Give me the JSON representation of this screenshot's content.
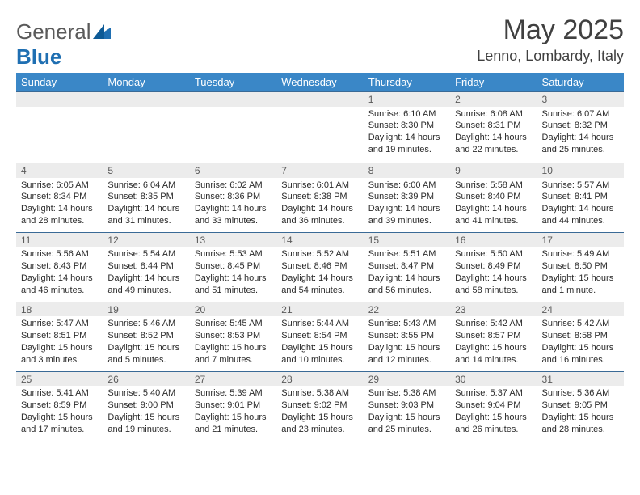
{
  "brand": {
    "part1": "General",
    "part2": "Blue"
  },
  "title": "May 2025",
  "location": "Lenno, Lombardy, Italy",
  "colors": {
    "header_bg": "#3a87c7",
    "header_text": "#ffffff",
    "daynum_bg": "#ececec",
    "row_border": "#3a6a96",
    "page_bg": "#ffffff",
    "text": "#2a2a2a",
    "title_color": "#404040"
  },
  "typography": {
    "title_fontsize": 34,
    "location_fontsize": 18,
    "header_fontsize": 13,
    "daynum_fontsize": 12,
    "body_fontsize": 11
  },
  "weekdays": [
    "Sunday",
    "Monday",
    "Tuesday",
    "Wednesday",
    "Thursday",
    "Friday",
    "Saturday"
  ],
  "weeks": [
    [
      null,
      null,
      null,
      null,
      {
        "n": "1",
        "sr": "Sunrise: 6:10 AM",
        "ss": "Sunset: 8:30 PM",
        "d1": "Daylight: 14 hours",
        "d2": "and 19 minutes."
      },
      {
        "n": "2",
        "sr": "Sunrise: 6:08 AM",
        "ss": "Sunset: 8:31 PM",
        "d1": "Daylight: 14 hours",
        "d2": "and 22 minutes."
      },
      {
        "n": "3",
        "sr": "Sunrise: 6:07 AM",
        "ss": "Sunset: 8:32 PM",
        "d1": "Daylight: 14 hours",
        "d2": "and 25 minutes."
      }
    ],
    [
      {
        "n": "4",
        "sr": "Sunrise: 6:05 AM",
        "ss": "Sunset: 8:34 PM",
        "d1": "Daylight: 14 hours",
        "d2": "and 28 minutes."
      },
      {
        "n": "5",
        "sr": "Sunrise: 6:04 AM",
        "ss": "Sunset: 8:35 PM",
        "d1": "Daylight: 14 hours",
        "d2": "and 31 minutes."
      },
      {
        "n": "6",
        "sr": "Sunrise: 6:02 AM",
        "ss": "Sunset: 8:36 PM",
        "d1": "Daylight: 14 hours",
        "d2": "and 33 minutes."
      },
      {
        "n": "7",
        "sr": "Sunrise: 6:01 AM",
        "ss": "Sunset: 8:38 PM",
        "d1": "Daylight: 14 hours",
        "d2": "and 36 minutes."
      },
      {
        "n": "8",
        "sr": "Sunrise: 6:00 AM",
        "ss": "Sunset: 8:39 PM",
        "d1": "Daylight: 14 hours",
        "d2": "and 39 minutes."
      },
      {
        "n": "9",
        "sr": "Sunrise: 5:58 AM",
        "ss": "Sunset: 8:40 PM",
        "d1": "Daylight: 14 hours",
        "d2": "and 41 minutes."
      },
      {
        "n": "10",
        "sr": "Sunrise: 5:57 AM",
        "ss": "Sunset: 8:41 PM",
        "d1": "Daylight: 14 hours",
        "d2": "and 44 minutes."
      }
    ],
    [
      {
        "n": "11",
        "sr": "Sunrise: 5:56 AM",
        "ss": "Sunset: 8:43 PM",
        "d1": "Daylight: 14 hours",
        "d2": "and 46 minutes."
      },
      {
        "n": "12",
        "sr": "Sunrise: 5:54 AM",
        "ss": "Sunset: 8:44 PM",
        "d1": "Daylight: 14 hours",
        "d2": "and 49 minutes."
      },
      {
        "n": "13",
        "sr": "Sunrise: 5:53 AM",
        "ss": "Sunset: 8:45 PM",
        "d1": "Daylight: 14 hours",
        "d2": "and 51 minutes."
      },
      {
        "n": "14",
        "sr": "Sunrise: 5:52 AM",
        "ss": "Sunset: 8:46 PM",
        "d1": "Daylight: 14 hours",
        "d2": "and 54 minutes."
      },
      {
        "n": "15",
        "sr": "Sunrise: 5:51 AM",
        "ss": "Sunset: 8:47 PM",
        "d1": "Daylight: 14 hours",
        "d2": "and 56 minutes."
      },
      {
        "n": "16",
        "sr": "Sunrise: 5:50 AM",
        "ss": "Sunset: 8:49 PM",
        "d1": "Daylight: 14 hours",
        "d2": "and 58 minutes."
      },
      {
        "n": "17",
        "sr": "Sunrise: 5:49 AM",
        "ss": "Sunset: 8:50 PM",
        "d1": "Daylight: 15 hours",
        "d2": "and 1 minute."
      }
    ],
    [
      {
        "n": "18",
        "sr": "Sunrise: 5:47 AM",
        "ss": "Sunset: 8:51 PM",
        "d1": "Daylight: 15 hours",
        "d2": "and 3 minutes."
      },
      {
        "n": "19",
        "sr": "Sunrise: 5:46 AM",
        "ss": "Sunset: 8:52 PM",
        "d1": "Daylight: 15 hours",
        "d2": "and 5 minutes."
      },
      {
        "n": "20",
        "sr": "Sunrise: 5:45 AM",
        "ss": "Sunset: 8:53 PM",
        "d1": "Daylight: 15 hours",
        "d2": "and 7 minutes."
      },
      {
        "n": "21",
        "sr": "Sunrise: 5:44 AM",
        "ss": "Sunset: 8:54 PM",
        "d1": "Daylight: 15 hours",
        "d2": "and 10 minutes."
      },
      {
        "n": "22",
        "sr": "Sunrise: 5:43 AM",
        "ss": "Sunset: 8:55 PM",
        "d1": "Daylight: 15 hours",
        "d2": "and 12 minutes."
      },
      {
        "n": "23",
        "sr": "Sunrise: 5:42 AM",
        "ss": "Sunset: 8:57 PM",
        "d1": "Daylight: 15 hours",
        "d2": "and 14 minutes."
      },
      {
        "n": "24",
        "sr": "Sunrise: 5:42 AM",
        "ss": "Sunset: 8:58 PM",
        "d1": "Daylight: 15 hours",
        "d2": "and 16 minutes."
      }
    ],
    [
      {
        "n": "25",
        "sr": "Sunrise: 5:41 AM",
        "ss": "Sunset: 8:59 PM",
        "d1": "Daylight: 15 hours",
        "d2": "and 17 minutes."
      },
      {
        "n": "26",
        "sr": "Sunrise: 5:40 AM",
        "ss": "Sunset: 9:00 PM",
        "d1": "Daylight: 15 hours",
        "d2": "and 19 minutes."
      },
      {
        "n": "27",
        "sr": "Sunrise: 5:39 AM",
        "ss": "Sunset: 9:01 PM",
        "d1": "Daylight: 15 hours",
        "d2": "and 21 minutes."
      },
      {
        "n": "28",
        "sr": "Sunrise: 5:38 AM",
        "ss": "Sunset: 9:02 PM",
        "d1": "Daylight: 15 hours",
        "d2": "and 23 minutes."
      },
      {
        "n": "29",
        "sr": "Sunrise: 5:38 AM",
        "ss": "Sunset: 9:03 PM",
        "d1": "Daylight: 15 hours",
        "d2": "and 25 minutes."
      },
      {
        "n": "30",
        "sr": "Sunrise: 5:37 AM",
        "ss": "Sunset: 9:04 PM",
        "d1": "Daylight: 15 hours",
        "d2": "and 26 minutes."
      },
      {
        "n": "31",
        "sr": "Sunrise: 5:36 AM",
        "ss": "Sunset: 9:05 PM",
        "d1": "Daylight: 15 hours",
        "d2": "and 28 minutes."
      }
    ]
  ]
}
